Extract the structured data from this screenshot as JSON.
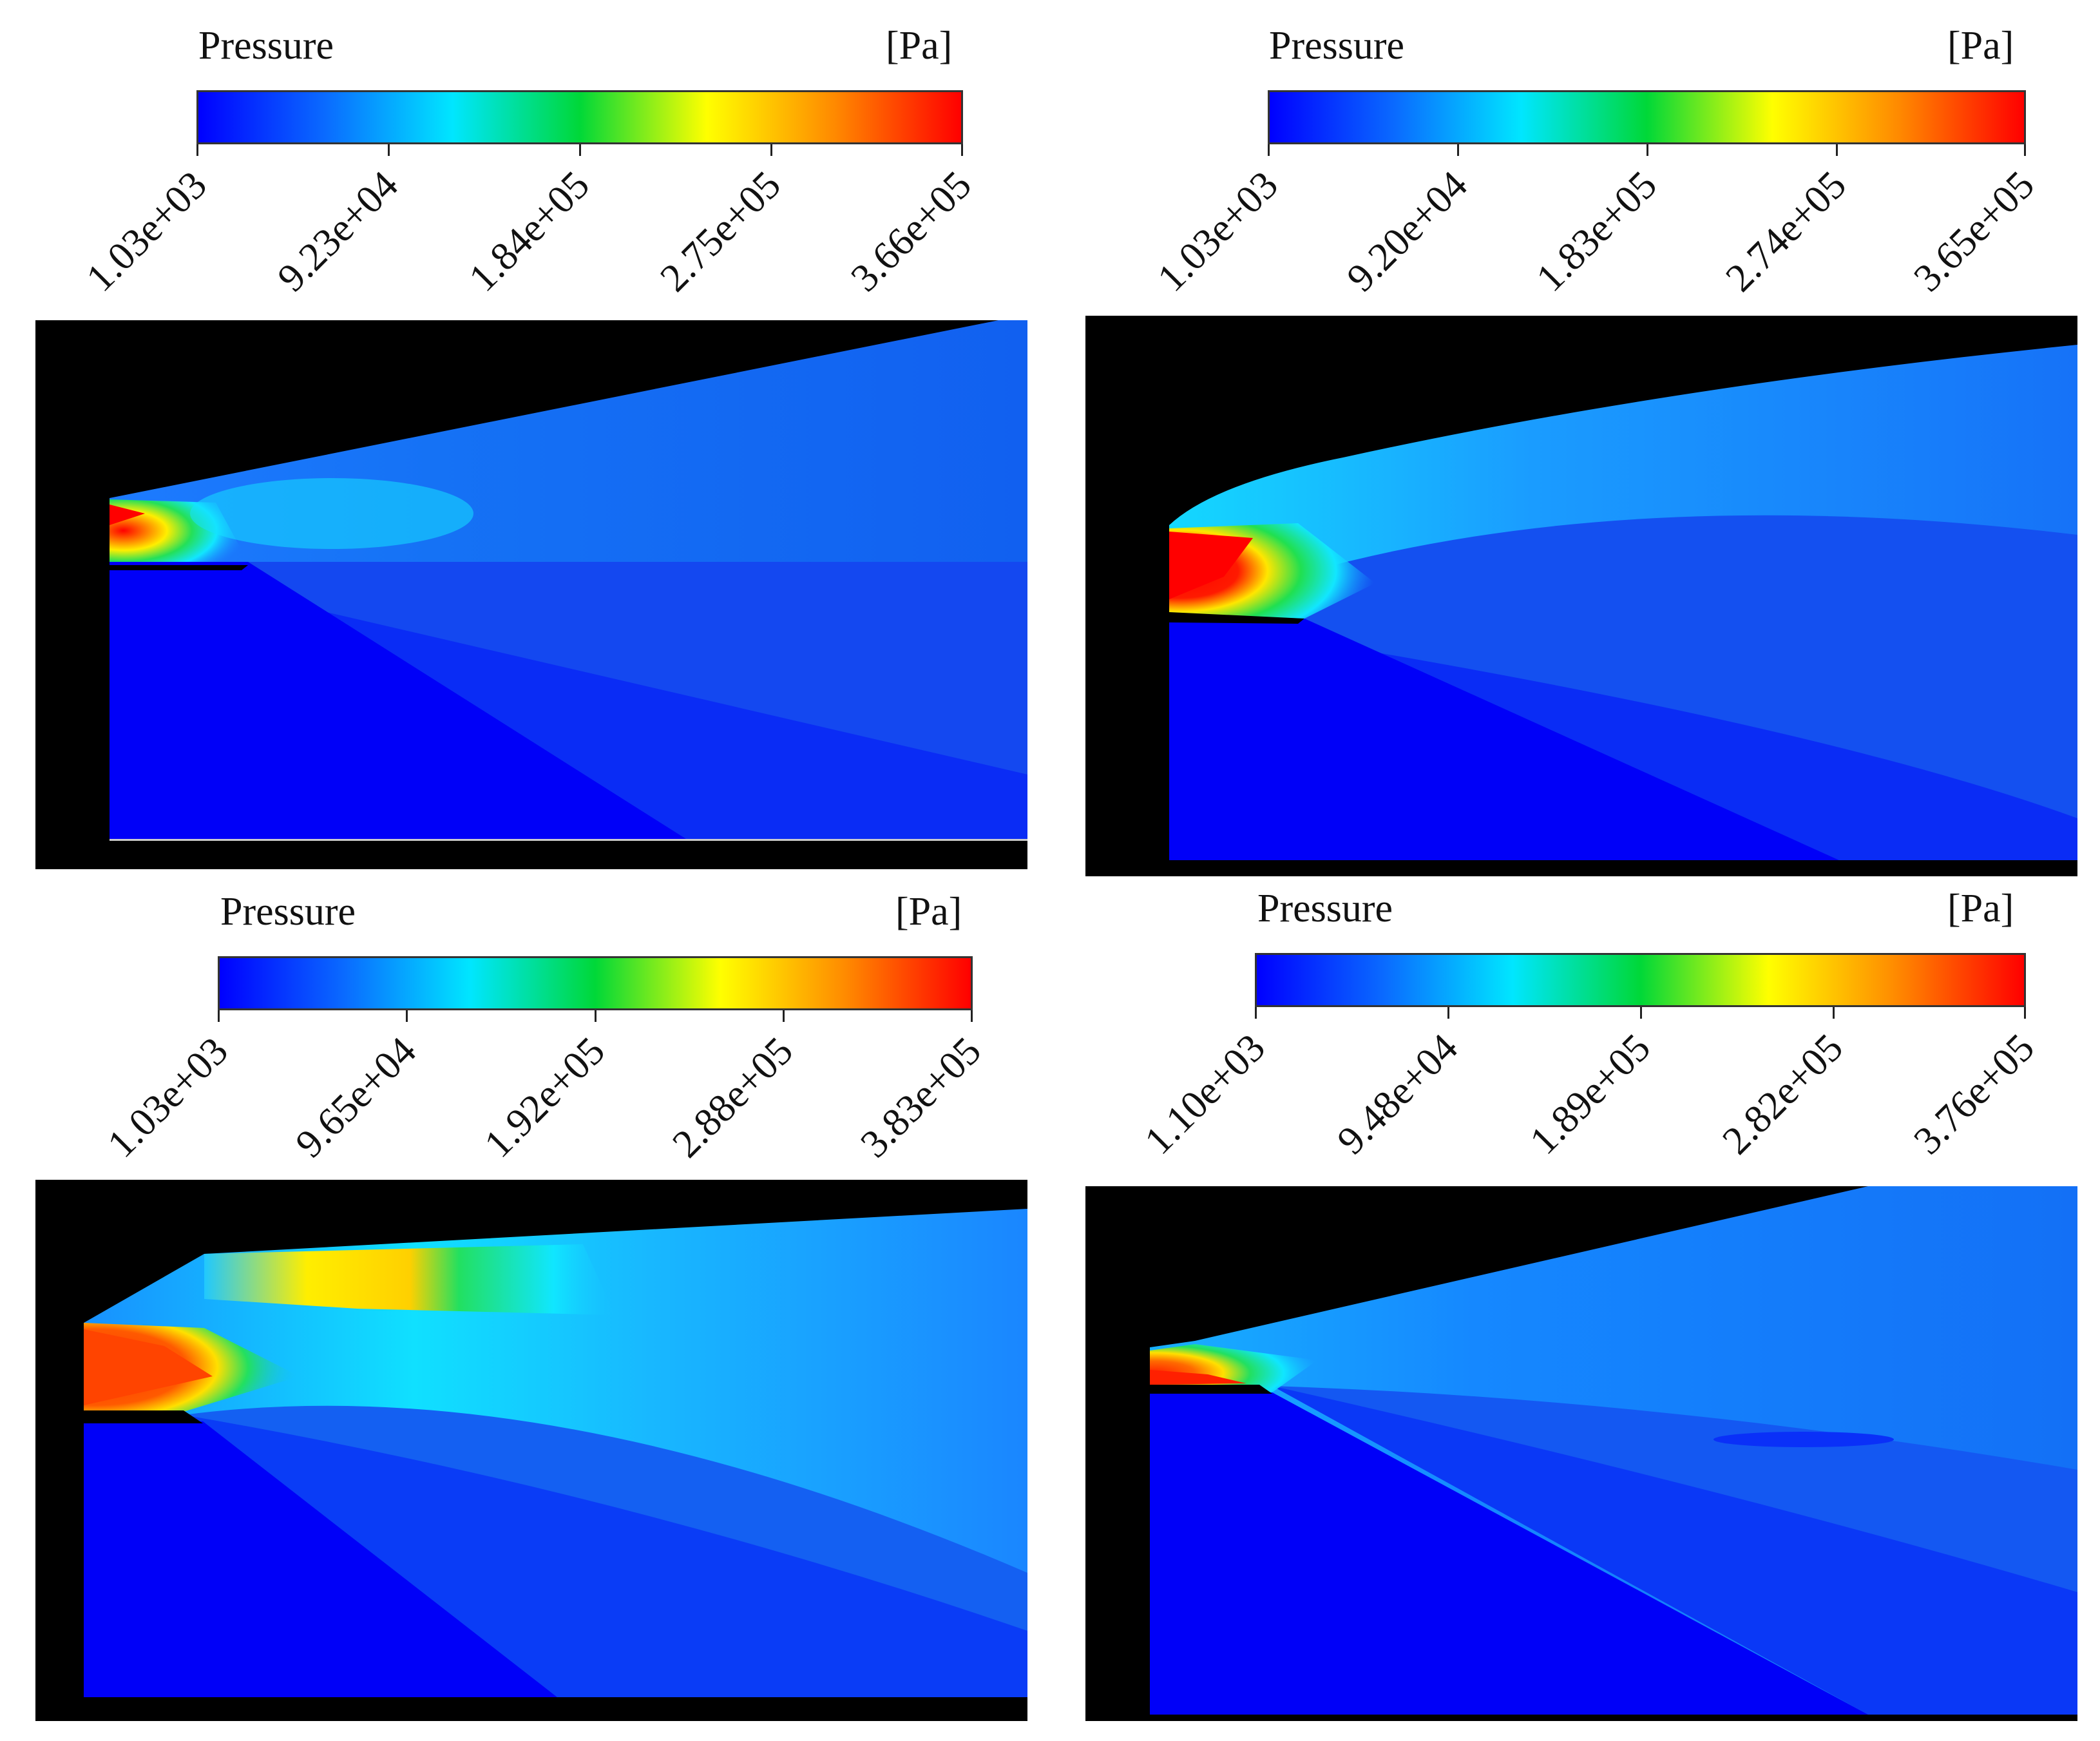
{
  "panels": [
    {
      "id": "top-left",
      "title": "Pressure",
      "unit": "[Pa]",
      "ticks": [
        "1.03e+03",
        "9.23e+04",
        "1.84e+05",
        "2.75e+05",
        "3.66e+05"
      ]
    },
    {
      "id": "top-right",
      "title": "Pressure",
      "unit": "[Pa]",
      "ticks": [
        "1.03e+03",
        "9.20e+04",
        "1.83e+05",
        "2.74e+05",
        "3.65e+05"
      ]
    },
    {
      "id": "bottom-left",
      "title": "Pressure",
      "unit": "[Pa]",
      "ticks": [
        "1.03e+03",
        "9.65e+04",
        "1.92e+05",
        "2.88e+05",
        "3.83e+05"
      ]
    },
    {
      "id": "bottom-right",
      "title": "Pressure",
      "unit": "[Pa]",
      "ticks": [
        "1.10e+03",
        "9.48e+04",
        "1.89e+05",
        "2.82e+05",
        "3.76e+05"
      ]
    }
  ],
  "colormap": [
    "#0000ff",
    "#0a6bff",
    "#00e6ff",
    "#00d838",
    "#ffff00",
    "#ff8a00",
    "#ff0000"
  ]
}
